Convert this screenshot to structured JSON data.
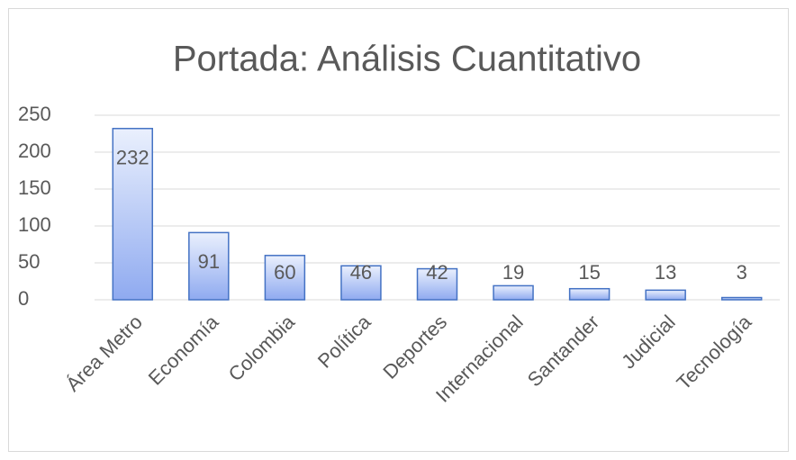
{
  "chart_data": {
    "type": "bar",
    "title": "Portada: Análisis Cuantitativo",
    "categories": [
      "Área Metro",
      "Economía",
      "Colombia",
      "Política",
      "Deportes",
      "Internacional",
      "Santander",
      "Judicial",
      "Tecnología"
    ],
    "values": [
      232,
      91,
      60,
      46,
      42,
      19,
      15,
      13,
      3
    ],
    "color": "#4472c4",
    "ylim": [
      0,
      250
    ],
    "yticks": [
      0,
      50,
      100,
      150,
      200,
      250
    ],
    "grid": true
  }
}
